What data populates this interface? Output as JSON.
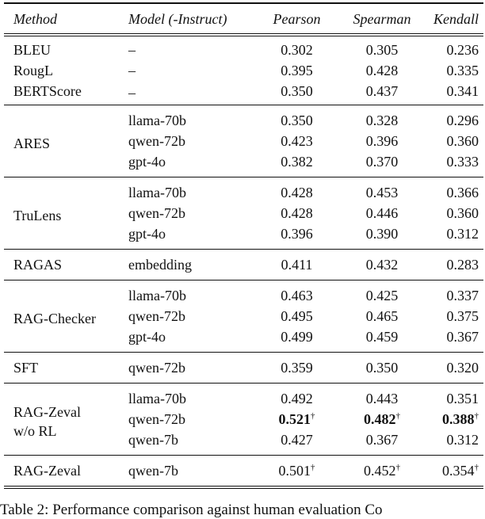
{
  "table": {
    "headers": [
      "Method",
      "Model (-Instruct)",
      "Pearson",
      "Spearman",
      "Kendall"
    ],
    "groups": [
      {
        "method": "",
        "rows": [
          {
            "method": "BLEU",
            "model": "–",
            "pearson": "0.302",
            "spearman": "0.305",
            "kendall": "0.236"
          },
          {
            "method": "RougL",
            "model": "–",
            "pearson": "0.395",
            "spearman": "0.428",
            "kendall": "0.335"
          },
          {
            "method": "BERTScore",
            "model": "–",
            "pearson": "0.350",
            "spearman": "0.437",
            "kendall": "0.341"
          }
        ]
      },
      {
        "method": "ARES",
        "rows": [
          {
            "model": "llama-70b",
            "pearson": "0.350",
            "spearman": "0.328",
            "kendall": "0.296"
          },
          {
            "model": "qwen-72b",
            "pearson": "0.423",
            "spearman": "0.396",
            "kendall": "0.360"
          },
          {
            "model": "gpt-4o",
            "pearson": "0.382",
            "spearman": "0.370",
            "kendall": "0.333"
          }
        ]
      },
      {
        "method": "TruLens",
        "rows": [
          {
            "model": "llama-70b",
            "pearson": "0.428",
            "spearman": "0.453",
            "kendall": "0.366"
          },
          {
            "model": "qwen-72b",
            "pearson": "0.428",
            "spearman": "0.446",
            "kendall": "0.360"
          },
          {
            "model": "gpt-4o",
            "pearson": "0.396",
            "spearman": "0.390",
            "kendall": "0.312"
          }
        ]
      },
      {
        "method": "RAGAS",
        "rows": [
          {
            "model": "embedding",
            "pearson": "0.411",
            "spearman": "0.432",
            "kendall": "0.283"
          }
        ]
      },
      {
        "method": "RAG-Checker",
        "rows": [
          {
            "model": "llama-70b",
            "pearson": "0.463",
            "spearman": "0.425",
            "kendall": "0.337"
          },
          {
            "model": "qwen-72b",
            "pearson": "0.495",
            "spearman": "0.465",
            "kendall": "0.375"
          },
          {
            "model": "gpt-4o",
            "pearson": "0.499",
            "spearman": "0.459",
            "kendall": "0.367"
          }
        ]
      },
      {
        "method": "SFT",
        "rows": [
          {
            "model": "qwen-72b",
            "pearson": "0.359",
            "spearman": "0.350",
            "kendall": "0.320"
          }
        ]
      },
      {
        "method_line1": "RAG-Zeval",
        "method_line2": "w/o RL",
        "rows": [
          {
            "model": "llama-70b",
            "pearson": "0.492",
            "spearman": "0.443",
            "kendall": "0.351"
          },
          {
            "model": "qwen-72b",
            "pearson": "0.521",
            "spearman": "0.482",
            "kendall": "0.388",
            "bold": true,
            "mark": "†"
          },
          {
            "model": "qwen-7b",
            "pearson": "0.427",
            "spearman": "0.367",
            "kendall": "0.312"
          }
        ]
      },
      {
        "method": "RAG-Zeval",
        "rows": [
          {
            "model": "qwen-7b",
            "pearson": "0.501",
            "spearman": "0.452",
            "kendall": "0.354",
            "mark": "†"
          }
        ]
      }
    ]
  },
  "caption": "Table 2: Performance comparison against human evaluation Co"
}
